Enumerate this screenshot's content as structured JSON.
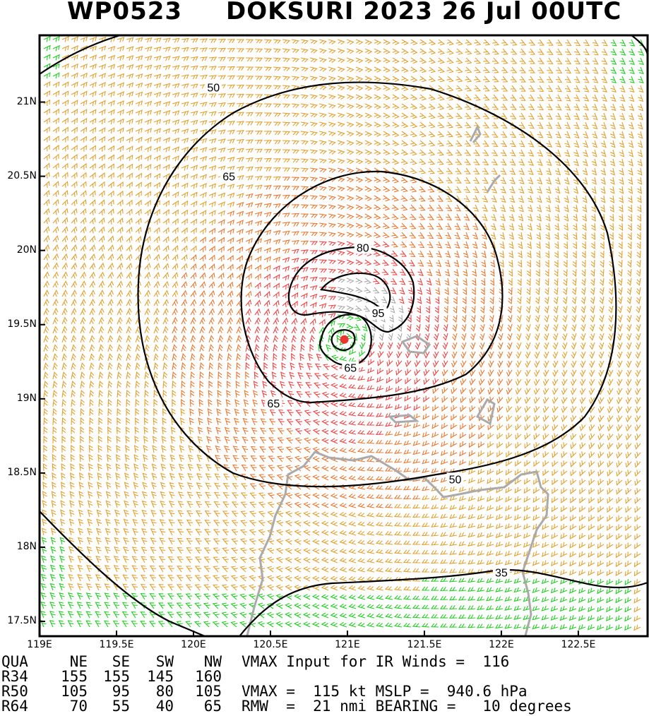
{
  "title": {
    "storm_id": "WP0523",
    "main": "DOKSURI 2023 26 Jul 00UTC"
  },
  "map": {
    "lat_labels": [
      "21N",
      "20.5N",
      "20N",
      "19.5N",
      "19N",
      "18.5N",
      "18N",
      "17.5N"
    ],
    "lon_labels": [
      "119E",
      "119.5E",
      "120E",
      "120.5E",
      "121E",
      "121.5E",
      "122E",
      "122.5E"
    ],
    "lat_range": [
      17.4,
      21.45
    ],
    "lon_range": [
      119.0,
      122.95
    ],
    "center": {
      "lat": 19.4,
      "lon": 120.98
    },
    "contour_labels": [
      {
        "text": "50",
        "lat": 21.1,
        "lon": 120.13
      },
      {
        "text": "65",
        "lat": 20.5,
        "lon": 120.23
      },
      {
        "text": "80",
        "lat": 20.02,
        "lon": 121.1
      },
      {
        "text": "95",
        "lat": 19.58,
        "lon": 121.2
      },
      {
        "text": "65",
        "lat": 19.21,
        "lon": 121.02
      },
      {
        "text": "65",
        "lat": 18.97,
        "lon": 120.52
      },
      {
        "text": "50",
        "lat": 18.46,
        "lon": 121.7
      },
      {
        "text": "35",
        "lat": 17.83,
        "lon": 122.0
      }
    ],
    "colors": {
      "green": "#22cc22",
      "gold": "#e0a030",
      "orange": "#e87830",
      "red": "#ee4444",
      "gray": "#a8a8a8",
      "coast": "#aaaaaa",
      "center_dot": "#ee3333"
    }
  },
  "table": {
    "header": [
      "QUA",
      "NE",
      "SE",
      "SW",
      "NW"
    ],
    "rows": [
      [
        "R34",
        "155",
        "155",
        "145",
        "160"
      ],
      [
        "R50",
        "105",
        "95",
        "80",
        "105"
      ],
      [
        "R64",
        "70",
        "55",
        "40",
        "65"
      ]
    ]
  },
  "info": {
    "line1": "VMAX Input for IR Winds =  116",
    "line2": "VMAX =  115 kt MSLP =  940.6 hPa",
    "line3": "RMW  =  21 nmi BEARING =   10 degrees"
  }
}
